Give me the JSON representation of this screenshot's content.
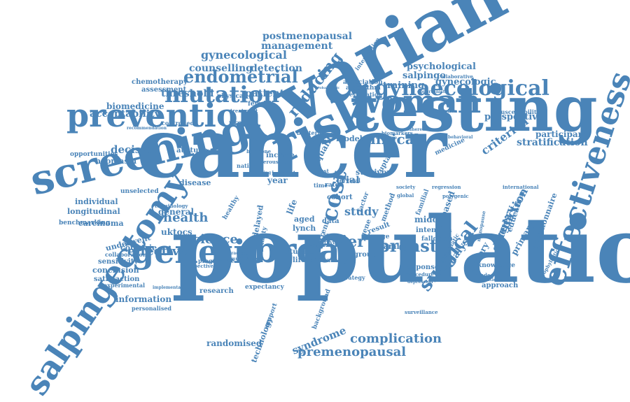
{
  "palette": {
    "word_color": "#4a84b8",
    "background": "#ffffff"
  },
  "words": [
    {
      "text": "population",
      "weight": 100
    },
    {
      "text": "cancer",
      "weight": 96
    },
    {
      "text": "ovarian",
      "weight": 92
    },
    {
      "text": "testing",
      "weight": 86
    },
    {
      "text": "risk",
      "weight": 72
    },
    {
      "text": "screening",
      "weight": 66
    },
    {
      "text": "prevention",
      "weight": 60
    },
    {
      "text": "genetic",
      "weight": 60
    },
    {
      "text": "brca",
      "weight": 58
    },
    {
      "text": "woman",
      "weight": 56
    },
    {
      "text": "salpingectomy",
      "weight": 55
    },
    {
      "text": "effectiveness",
      "weight": 54
    },
    {
      "text": "mutation",
      "weight": 44
    },
    {
      "text": "gynaecological",
      "weight": 42
    },
    {
      "text": "cost",
      "weight": 40
    },
    {
      "text": "endometrial",
      "weight": 34
    },
    {
      "text": "breast",
      "weight": 32
    },
    {
      "text": "surgical",
      "weight": 32
    },
    {
      "text": "reducing",
      "weight": 30
    },
    {
      "text": "carrier",
      "weight": 30
    },
    {
      "text": "clinical",
      "weight": 28
    },
    {
      "text": "effective",
      "weight": 28
    },
    {
      "text": "science",
      "weight": 26
    },
    {
      "text": "complication",
      "weight": 26
    },
    {
      "text": "premenopausal",
      "weight": 26
    },
    {
      "text": "health",
      "weight": 26
    },
    {
      "text": "gynecological",
      "weight": 24
    },
    {
      "text": "decision",
      "weight": 24
    },
    {
      "text": "counselling",
      "weight": 22
    },
    {
      "text": "detection",
      "weight": 22
    },
    {
      "text": "threshold",
      "weight": 22
    },
    {
      "text": "patient",
      "weight": 22
    },
    {
      "text": "acceptability",
      "weight": 22
    },
    {
      "text": "criterion",
      "weight": 22
    },
    {
      "text": "stratification",
      "weight": 22
    },
    {
      "text": "study",
      "weight": 22
    },
    {
      "text": "prediction",
      "weight": 22
    },
    {
      "text": "analysis",
      "weight": 22
    },
    {
      "text": "syndrome",
      "weight": 22
    },
    {
      "text": "surgery",
      "weight": 22
    },
    {
      "text": "trial",
      "weight": 22
    },
    {
      "text": "postmenopausal",
      "weight": 20
    },
    {
      "text": "management",
      "weight": 20
    },
    {
      "text": "psychological",
      "weight": 20
    },
    {
      "text": "salpingo",
      "weight": 20
    },
    {
      "text": "training",
      "weight": 20
    },
    {
      "text": "gynecologic",
      "weight": 20
    },
    {
      "text": "prospective",
      "weight": 20
    },
    {
      "text": "participant",
      "weight": 20
    },
    {
      "text": "biomedicine",
      "weight": 18
    },
    {
      "text": "year",
      "weight": 18
    },
    {
      "text": "family",
      "weight": 18
    },
    {
      "text": "middle",
      "weight": 18
    },
    {
      "text": "uktocs",
      "weight": 18
    },
    {
      "text": "based",
      "weight": 18
    },
    {
      "text": "primary",
      "weight": 18
    },
    {
      "text": "randomised",
      "weight": 18
    },
    {
      "text": "history",
      "weight": 18
    },
    {
      "text": "general",
      "weight": 18
    },
    {
      "text": "information",
      "weight": 18
    },
    {
      "text": "questionnaire",
      "weight": 18
    },
    {
      "text": "education",
      "weight": 16
    },
    {
      "text": "chemotherapy",
      "weight": 16
    },
    {
      "text": "assessment",
      "weight": 16
    },
    {
      "text": "physical",
      "weight": 16
    },
    {
      "text": "protein",
      "weight": 16
    },
    {
      "text": "attitude",
      "weight": 16
    },
    {
      "text": "neoplasm",
      "weight": 16
    },
    {
      "text": "opportunities",
      "weight": 16
    },
    {
      "text": "disease",
      "weight": 16
    },
    {
      "text": "individual",
      "weight": 16
    },
    {
      "text": "longitudinal",
      "weight": 16
    },
    {
      "text": "unselected",
      "weight": 16
    },
    {
      "text": "carcinoma",
      "weight": 16
    },
    {
      "text": "benchmarking",
      "weight": 16
    },
    {
      "text": "underwent",
      "weight": 16
    },
    {
      "text": "countrie",
      "weight": 16
    },
    {
      "text": "collaboration",
      "weight": 16
    },
    {
      "text": "sensitivity",
      "weight": 16
    },
    {
      "text": "conclusion",
      "weight": 16
    },
    {
      "text": "satisfaction",
      "weight": 16
    },
    {
      "text": "experimental",
      "weight": 16
    },
    {
      "text": "personalised",
      "weight": 16
    },
    {
      "text": "controlled",
      "weight": 16
    },
    {
      "text": "recommendation",
      "weight": 16
    },
    {
      "text": "cohort",
      "weight": 16
    },
    {
      "text": "model",
      "weight": 16
    },
    {
      "text": "quality",
      "weight": 16
    },
    {
      "text": "life",
      "weight": 16
    },
    {
      "text": "delayed",
      "weight": 16
    },
    {
      "text": "aged",
      "weight": 16
    },
    {
      "text": "lynch",
      "weight": 16
    },
    {
      "text": "data",
      "weight": 16
    },
    {
      "text": "gene",
      "weight": 16
    },
    {
      "text": "result",
      "weight": 16
    },
    {
      "text": "intention",
      "weight": 16
    },
    {
      "text": "fallopian",
      "weight": 16
    },
    {
      "text": "change",
      "weight": 16
    },
    {
      "text": "group",
      "weight": 16
    },
    {
      "text": "response",
      "weight": 16
    },
    {
      "text": "approach",
      "weight": 16
    },
    {
      "text": "knowledge",
      "weight": 16
    },
    {
      "text": "research",
      "weight": 16
    },
    {
      "text": "technology",
      "weight": 16
    },
    {
      "text": "background",
      "weight": 16
    },
    {
      "text": "support",
      "weight": 16
    },
    {
      "text": "method",
      "weight": 16
    },
    {
      "text": "survivor",
      "weight": 16
    },
    {
      "text": "intervention",
      "weight": 14
    },
    {
      "text": "association",
      "weight": 14
    },
    {
      "text": "algorithm",
      "weight": 14
    },
    {
      "text": "evaluation",
      "weight": 14
    },
    {
      "text": "comparison",
      "weight": 14
    },
    {
      "text": "susceptibility",
      "weight": 14
    },
    {
      "text": "collaborative",
      "weight": 14
    },
    {
      "text": "biomarkers",
      "weight": 14
    },
    {
      "text": "adherence",
      "weight": 14
    },
    {
      "text": "international",
      "weight": 14
    },
    {
      "text": "medicine",
      "weight": 14
    },
    {
      "text": "regression",
      "weight": 14
    },
    {
      "text": "surveillance",
      "weight": 14
    },
    {
      "text": "expectancy",
      "weight": 14
    },
    {
      "text": "implementation",
      "weight": 14
    },
    {
      "text": "studies",
      "weight": 14
    },
    {
      "text": "lifetime",
      "weight": 14
    },
    {
      "text": "anatomy",
      "weight": 14
    },
    {
      "text": "income",
      "weight": 14
    },
    {
      "text": "impact",
      "weight": 14
    },
    {
      "text": "national",
      "weight": 14
    },
    {
      "text": "mortality",
      "weight": 14
    },
    {
      "text": "current",
      "weight": 14
    },
    {
      "text": "programme",
      "weight": 14
    },
    {
      "text": "multicentre",
      "weight": 14
    },
    {
      "text": "gradient",
      "weight": 14
    },
    {
      "text": "terminology",
      "weight": 14
    },
    {
      "text": "healthy",
      "weight": 14
    },
    {
      "text": "society",
      "weight": 14
    },
    {
      "text": "global",
      "weight": 14
    },
    {
      "text": "polygenic",
      "weight": 14
    },
    {
      "text": "procedure",
      "weight": 14
    },
    {
      "text": "systematic",
      "weight": 14
    },
    {
      "text": "strategy",
      "weight": 14
    },
    {
      "text": "review",
      "weight": 14
    },
    {
      "text": "factor",
      "weight": 14
    },
    {
      "text": "familial",
      "weight": 14
    },
    {
      "text": "menopause",
      "weight": 14
    },
    {
      "text": "depression",
      "weight": 14
    },
    {
      "text": "opportunistic",
      "weight": 14
    },
    {
      "text": "prophylactic",
      "weight": 14
    },
    {
      "text": "bilateral",
      "weight": 14
    },
    {
      "text": "female",
      "weight": 14
    },
    {
      "text": "treatment",
      "weight": 14
    },
    {
      "text": "hormone",
      "weight": 14
    },
    {
      "text": "making",
      "weight": 14
    },
    {
      "text": "perspective",
      "weight": 14
    },
    {
      "text": "score",
      "weight": 14
    },
    {
      "text": "rate",
      "weight": 14
    },
    {
      "text": "time",
      "weight": 14
    },
    {
      "text": "test",
      "weight": 14
    },
    {
      "text": "objective",
      "weight": 14
    },
    {
      "text": "behavioral",
      "weight": 14
    },
    {
      "text": "uptake",
      "weight": 14
    },
    {
      "text": "grade",
      "weight": 14
    },
    {
      "text": "educational",
      "weight": 14
    },
    {
      "text": "probabilistic",
      "weight": 14
    },
    {
      "text": "cervical",
      "weight": 14
    },
    {
      "text": "serous",
      "weight": 14
    }
  ]
}
